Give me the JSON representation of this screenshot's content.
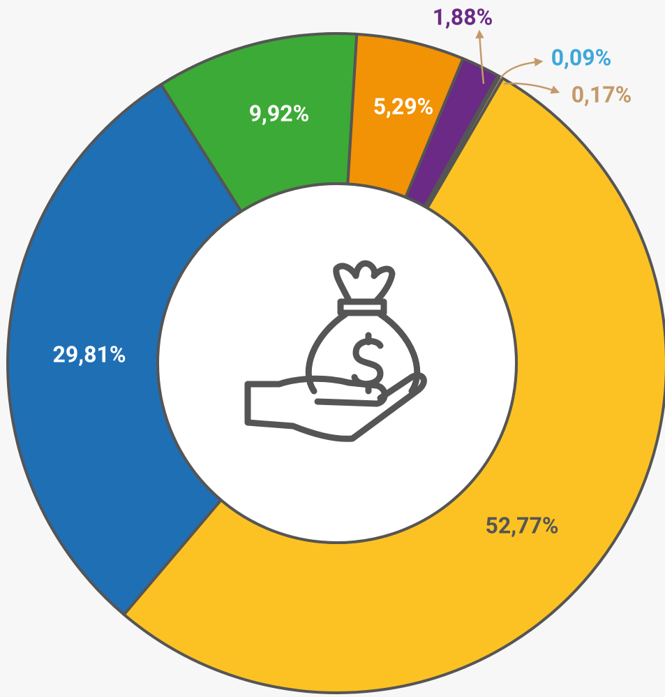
{
  "chart_data": {
    "type": "donut",
    "values": [
      52.77,
      29.81,
      9.92,
      5.29,
      1.88,
      0.09,
      0.17
    ],
    "value_labels": [
      "52,77%",
      "29,81%",
      "9,92%",
      "5,29%",
      "1,88%",
      "0,09%",
      "0,17%"
    ],
    "colors": [
      "#fcc223",
      "#1f6fb5",
      "#3caa36",
      "#f29205",
      "#6a2a85",
      "#3ea7db",
      "#c4996a"
    ]
  }
}
